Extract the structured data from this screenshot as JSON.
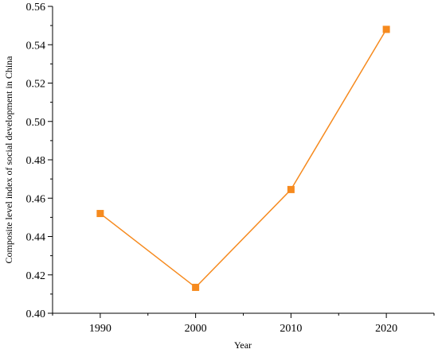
{
  "chart_data": {
    "type": "line",
    "xlabel": "Year",
    "ylabel": "Composite level index of social development in China",
    "x": [
      "1990",
      "2000",
      "2010",
      "2020"
    ],
    "series": [
      {
        "values": [
          0.452,
          0.4135,
          0.4645,
          0.548
        ],
        "color": "#F68A1E",
        "marker": "square"
      }
    ],
    "ylim": [
      0.4,
      0.56
    ],
    "yticks": [
      "0.40",
      "0.42",
      "0.44",
      "0.46",
      "0.48",
      "0.50",
      "0.52",
      "0.54",
      "0.56"
    ],
    "xlim": [
      1985,
      2025
    ],
    "grid": false,
    "legend": "none"
  }
}
